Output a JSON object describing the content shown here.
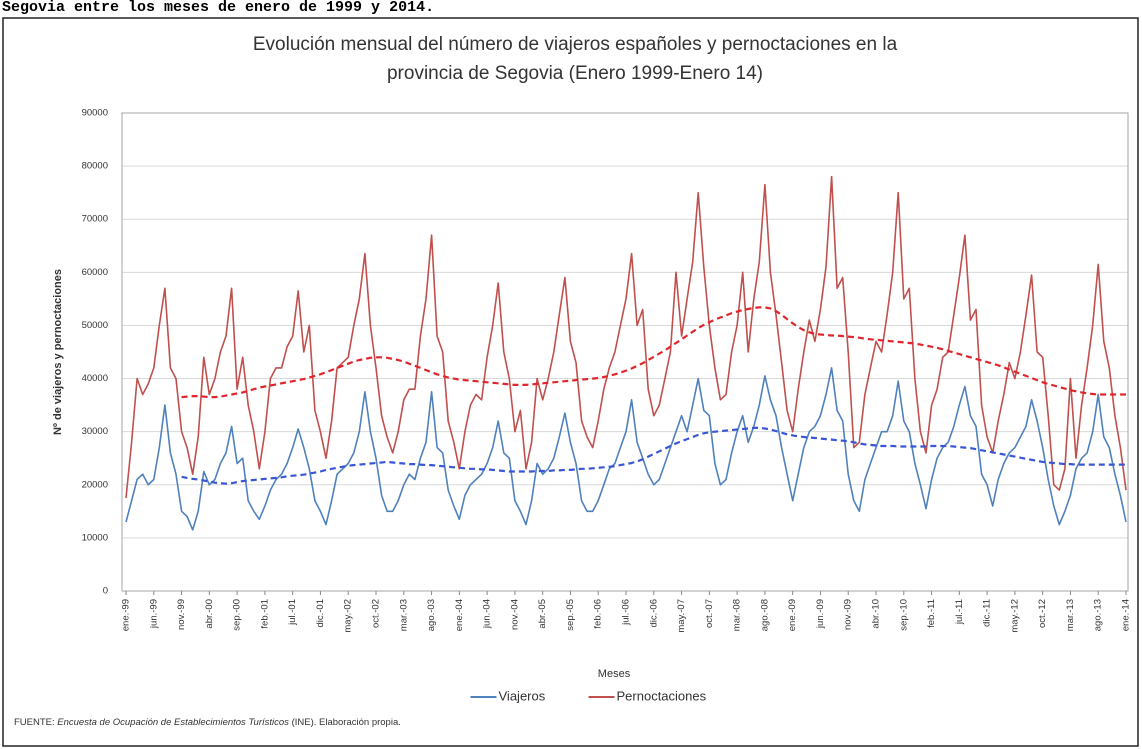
{
  "caption": "Segovia entre los meses de enero de 1999 y 2014.",
  "source": {
    "prefix": "FUENTE:",
    "italic": "Encuesta de Ocupación de Establecimientos Turísticos",
    "suffix": "(INE). Elaboración propia."
  },
  "chart_data": {
    "type": "line",
    "title": [
      "Evolución mensual del número de viajeros españoles y pernoctaciones en la",
      "provincia de Segovia (Enero 1999-Enero 14)"
    ],
    "y_label": "Nº de viajeros y pernoctaciones",
    "x_label": "Meses",
    "ylim": [
      0,
      90000
    ],
    "yticks": [
      0,
      10000,
      20000,
      30000,
      40000,
      50000,
      60000,
      70000,
      80000,
      90000
    ],
    "grid": true,
    "legend": "bottom",
    "categories": [
      "ene.-99",
      null,
      null,
      null,
      null,
      "jun.-99",
      null,
      null,
      null,
      null,
      "nov.-99",
      null,
      null,
      null,
      null,
      "abr.-00",
      null,
      null,
      null,
      null,
      "sep.-00",
      null,
      null,
      null,
      null,
      "feb.-01",
      null,
      null,
      null,
      null,
      "jul.-01",
      null,
      null,
      null,
      null,
      "dic.-01",
      null,
      null,
      null,
      null,
      "may.-02",
      null,
      null,
      null,
      null,
      "oct.-02",
      null,
      null,
      null,
      null,
      "mar.-03",
      null,
      null,
      null,
      null,
      "ago.-03",
      null,
      null,
      null,
      null,
      "ene.-04",
      null,
      null,
      null,
      null,
      "jun.-04",
      null,
      null,
      null,
      null,
      "nov.-04",
      null,
      null,
      null,
      null,
      "abr.-05",
      null,
      null,
      null,
      null,
      "sep.-05",
      null,
      null,
      null,
      null,
      "feb.-06",
      null,
      null,
      null,
      null,
      "jul.-06",
      null,
      null,
      null,
      null,
      "dic.-06",
      null,
      null,
      null,
      null,
      "may.-07",
      null,
      null,
      null,
      null,
      "oct.-07",
      null,
      null,
      null,
      null,
      "mar.-08",
      null,
      null,
      null,
      null,
      "ago.-08",
      null,
      null,
      null,
      null,
      "ene.-09",
      null,
      null,
      null,
      null,
      "jun.-09",
      null,
      null,
      null,
      null,
      "nov.-09",
      null,
      null,
      null,
      null,
      "abr.-10",
      null,
      null,
      null,
      null,
      "sep.-10",
      null,
      null,
      null,
      null,
      "feb.-11",
      null,
      null,
      null,
      null,
      "jul.-11",
      null,
      null,
      null,
      null,
      "dic.-11",
      null,
      null,
      null,
      null,
      "may.-12",
      null,
      null,
      null,
      null,
      "oct.-12",
      null,
      null,
      null,
      null,
      "mar.-13",
      null,
      null,
      null,
      null,
      "ago.-13",
      null,
      null,
      null,
      null,
      "ene.-14"
    ],
    "series": [
      {
        "name": "Viajeros",
        "color": "#4f81bd",
        "values": [
          13000,
          17000,
          21000,
          22000,
          20000,
          21000,
          27000,
          35000,
          26000,
          22000,
          15000,
          14000,
          11500,
          15000,
          22500,
          20000,
          21000,
          24000,
          26000,
          31000,
          24000,
          25000,
          17000,
          15000,
          13500,
          16000,
          19000,
          21000,
          22000,
          24000,
          27000,
          30500,
          27000,
          23000,
          17000,
          15000,
          12500,
          17000,
          22000,
          23000,
          24000,
          26000,
          30000,
          37500,
          30000,
          25000,
          18000,
          15000,
          15000,
          17000,
          20000,
          22000,
          21000,
          25000,
          28000,
          37500,
          27000,
          26000,
          19000,
          16000,
          13500,
          18000,
          20000,
          21000,
          22000,
          24000,
          27000,
          32000,
          26000,
          25000,
          17000,
          15000,
          12500,
          17000,
          24000,
          22000,
          23000,
          25000,
          29000,
          33500,
          28000,
          24000,
          17000,
          15000,
          15000,
          17000,
          20000,
          23000,
          24000,
          27000,
          30000,
          36000,
          28000,
          25000,
          22000,
          20000,
          21000,
          24000,
          27000,
          30000,
          33000,
          30000,
          35000,
          40000,
          34000,
          33000,
          24000,
          20000,
          21000,
          26000,
          30000,
          33000,
          28000,
          31000,
          35000,
          40500,
          36000,
          33000,
          27000,
          22000,
          17000,
          22000,
          27000,
          30000,
          31000,
          33000,
          37000,
          42000,
          34000,
          32000,
          22000,
          17000,
          15000,
          21000,
          24000,
          27000,
          30000,
          30000,
          33000,
          39500,
          32000,
          30000,
          24000,
          20000,
          15500,
          21000,
          25000,
          27000,
          28000,
          31000,
          35000,
          38500,
          33000,
          31000,
          22000,
          20000,
          16000,
          21000,
          24000,
          26000,
          27000,
          29000,
          31000,
          36000,
          32000,
          27000,
          21000,
          16000,
          12500,
          15000,
          18000,
          23000,
          25000,
          26000,
          30000,
          37000,
          29000,
          27000,
          22000,
          18000,
          13000
        ]
      },
      {
        "name": "Pernoctaciones",
        "color": "#c0504d",
        "values": [
          17500,
          28000,
          40000,
          37000,
          39000,
          42000,
          50000,
          57000,
          42000,
          40000,
          30000,
          27000,
          22000,
          29000,
          44000,
          37000,
          40000,
          45000,
          48000,
          57000,
          38000,
          44000,
          35000,
          30000,
          23000,
          30000,
          40000,
          42000,
          42000,
          46000,
          48000,
          56500,
          45000,
          50000,
          34000,
          30000,
          25000,
          32000,
          42000,
          43000,
          44000,
          50000,
          55000,
          63500,
          50000,
          42000,
          33000,
          29000,
          26000,
          30000,
          36000,
          38000,
          38000,
          48000,
          55000,
          67000,
          48000,
          45000,
          32000,
          28000,
          23000,
          30000,
          35000,
          37000,
          36000,
          44000,
          50000,
          58000,
          45000,
          40000,
          30000,
          34000,
          23000,
          28000,
          40000,
          36000,
          40000,
          45000,
          52000,
          59000,
          47000,
          43000,
          32000,
          29000,
          27000,
          32000,
          38000,
          42000,
          45000,
          50000,
          55000,
          63500,
          50000,
          53000,
          38000,
          33000,
          35000,
          40000,
          45000,
          60000,
          48000,
          55000,
          62000,
          75000,
          61000,
          50000,
          42000,
          36000,
          37000,
          45000,
          50000,
          60000,
          45000,
          55000,
          62000,
          76500,
          60000,
          52000,
          43000,
          34000,
          30000,
          38000,
          45000,
          51000,
          47000,
          53000,
          61000,
          78000,
          57000,
          59000,
          45000,
          27000,
          28000,
          37000,
          42000,
          47000,
          45000,
          52000,
          60000,
          75000,
          55000,
          57000,
          40000,
          30000,
          26000,
          35000,
          38000,
          44000,
          45000,
          52000,
          59000,
          67000,
          51000,
          53000,
          35000,
          29000,
          26000,
          32000,
          37000,
          43000,
          40000,
          45000,
          52000,
          59500,
          45000,
          44000,
          33000,
          20000,
          19000,
          23000,
          40000,
          25000,
          35000,
          42000,
          50000,
          61500,
          47000,
          42000,
          33000,
          27000,
          19000
        ]
      }
    ],
    "trends": [
      {
        "color": "#3a56d4",
        "dashed": true,
        "values": [
          null,
          null,
          null,
          null,
          null,
          null,
          null,
          null,
          null,
          null,
          21500,
          21300,
          21100,
          21000,
          20800,
          20600,
          20400,
          20300,
          20200,
          20300,
          20500,
          20700,
          20800,
          20900,
          21000,
          21100,
          21200,
          21300,
          21400,
          21600,
          21700,
          21800,
          21900,
          22100,
          22300,
          22500,
          22800,
          23000,
          23200,
          23400,
          23600,
          23700,
          23800,
          23900,
          24000,
          24100,
          24200,
          24300,
          24200,
          24100,
          24000,
          23900,
          23900,
          23800,
          23700,
          23700,
          23600,
          23500,
          23400,
          23300,
          23200,
          23100,
          23000,
          23000,
          22900,
          22900,
          22800,
          22700,
          22600,
          22500,
          22500,
          22500,
          22500,
          22500,
          22600,
          22600,
          22600,
          22700,
          22700,
          22800,
          22800,
          22900,
          23000,
          23000,
          23100,
          23200,
          23300,
          23400,
          23500,
          23700,
          23900,
          24100,
          24400,
          24800,
          25300,
          25800,
          26300,
          26800,
          27300,
          27800,
          28200,
          28600,
          29000,
          29400,
          29700,
          29900,
          30000,
          30100,
          30200,
          30300,
          30400,
          30500,
          30600,
          30700,
          30700,
          30600,
          30400,
          30100,
          29800,
          29500,
          29300,
          29100,
          29000,
          28900,
          28800,
          28700,
          28600,
          28500,
          28400,
          28300,
          28200,
          28000,
          27800,
          27600,
          27500,
          27400,
          27300,
          27300,
          27300,
          27200,
          27200,
          27200,
          27200,
          27200,
          27200,
          27300,
          27300,
          27300,
          27300,
          27200,
          27100,
          27000,
          26900,
          26700,
          26500,
          26300,
          26100,
          25900,
          25700,
          25500,
          25300,
          25100,
          24900,
          24700,
          24500,
          24300,
          24200,
          24100,
          24000,
          23900,
          23900,
          23800,
          23800,
          23800,
          23800,
          23800,
          23800,
          23800,
          23800,
          23800,
          23800
        ]
      },
      {
        "color": "#e0262c",
        "dashed": true,
        "values": [
          null,
          null,
          null,
          null,
          null,
          null,
          null,
          null,
          null,
          null,
          36500,
          36600,
          36700,
          36700,
          36600,
          36500,
          36500,
          36600,
          36800,
          37000,
          37200,
          37400,
          37700,
          38000,
          38300,
          38500,
          38700,
          38900,
          39100,
          39300,
          39500,
          39700,
          39900,
          40200,
          40500,
          40800,
          41200,
          41600,
          42000,
          42400,
          42800,
          43200,
          43500,
          43700,
          43900,
          44000,
          44000,
          43900,
          43700,
          43500,
          43200,
          42800,
          42400,
          42000,
          41600,
          41200,
          40800,
          40500,
          40200,
          40000,
          39800,
          39700,
          39600,
          39500,
          39400,
          39300,
          39200,
          39100,
          39000,
          38900,
          38800,
          38800,
          38800,
          38900,
          39000,
          39100,
          39200,
          39300,
          39400,
          39500,
          39600,
          39700,
          39800,
          39900,
          40000,
          40100,
          40300,
          40500,
          40800,
          41100,
          41500,
          41900,
          42400,
          42900,
          43500,
          44100,
          44700,
          45300,
          46000,
          46700,
          47400,
          48100,
          48800,
          49500,
          50100,
          50600,
          51100,
          51500,
          51900,
          52300,
          52600,
          52900,
          53100,
          53300,
          53400,
          53400,
          53200,
          52700,
          52000,
          51200,
          50400,
          49700,
          49100,
          48700,
          48400,
          48300,
          48200,
          48100,
          48100,
          48000,
          47900,
          47800,
          47700,
          47500,
          47400,
          47300,
          47200,
          47100,
          47000,
          46900,
          46800,
          46700,
          46600,
          46400,
          46200,
          46000,
          45800,
          45500,
          45200,
          44900,
          44600,
          44300,
          44000,
          43700,
          43400,
          43100,
          42800,
          42500,
          42100,
          41700,
          41300,
          40900,
          40500,
          40100,
          39700,
          39300,
          39000,
          38700,
          38400,
          38100,
          37800,
          37600,
          37400,
          37200,
          37100,
          37000,
          37000,
          37000,
          37000,
          37000,
          37000
        ]
      }
    ]
  }
}
